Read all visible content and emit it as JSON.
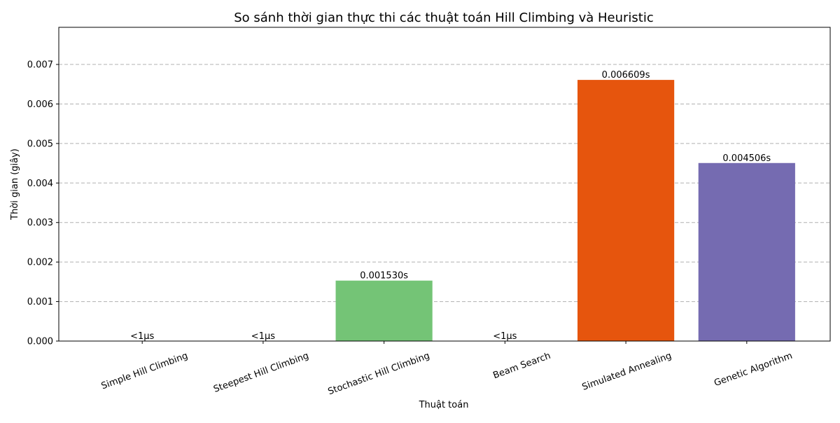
{
  "chart_data": {
    "type": "bar",
    "title": "So sánh thời gian thực thi các thuật toán Hill Climbing và Heuristic",
    "xlabel": "Thuật toán",
    "ylabel": "Thời gian (giây)",
    "categories": [
      "Simple Hill Climbing",
      "Steepest Hill Climbing",
      "Stochastic Hill Climbing",
      "Beam Search",
      "Simulated Annealing",
      "Genetic Algorithm"
    ],
    "values": [
      0,
      0,
      0.00153,
      0,
      0.006609,
      0.004506
    ],
    "data_labels": [
      "<1µs",
      "<1µs",
      "0.001530s",
      "<1µs",
      "0.006609s",
      "0.004506s"
    ],
    "bar_colors": [
      "#74c476",
      "#74c476",
      "#74c476",
      "#74c476",
      "#e6550d",
      "#756bb1"
    ],
    "ylim": [
      0,
      0.00794
    ],
    "yticks": [
      0,
      0.001,
      0.002,
      0.003,
      0.004,
      0.005,
      0.006,
      0.007
    ],
    "ytick_labels": [
      "0.000",
      "0.001",
      "0.002",
      "0.003",
      "0.004",
      "0.005",
      "0.006",
      "0.007"
    ],
    "grid": "y-dashed",
    "grid_color": "#b0b0b0",
    "xtick_rotation_deg": 20
  }
}
